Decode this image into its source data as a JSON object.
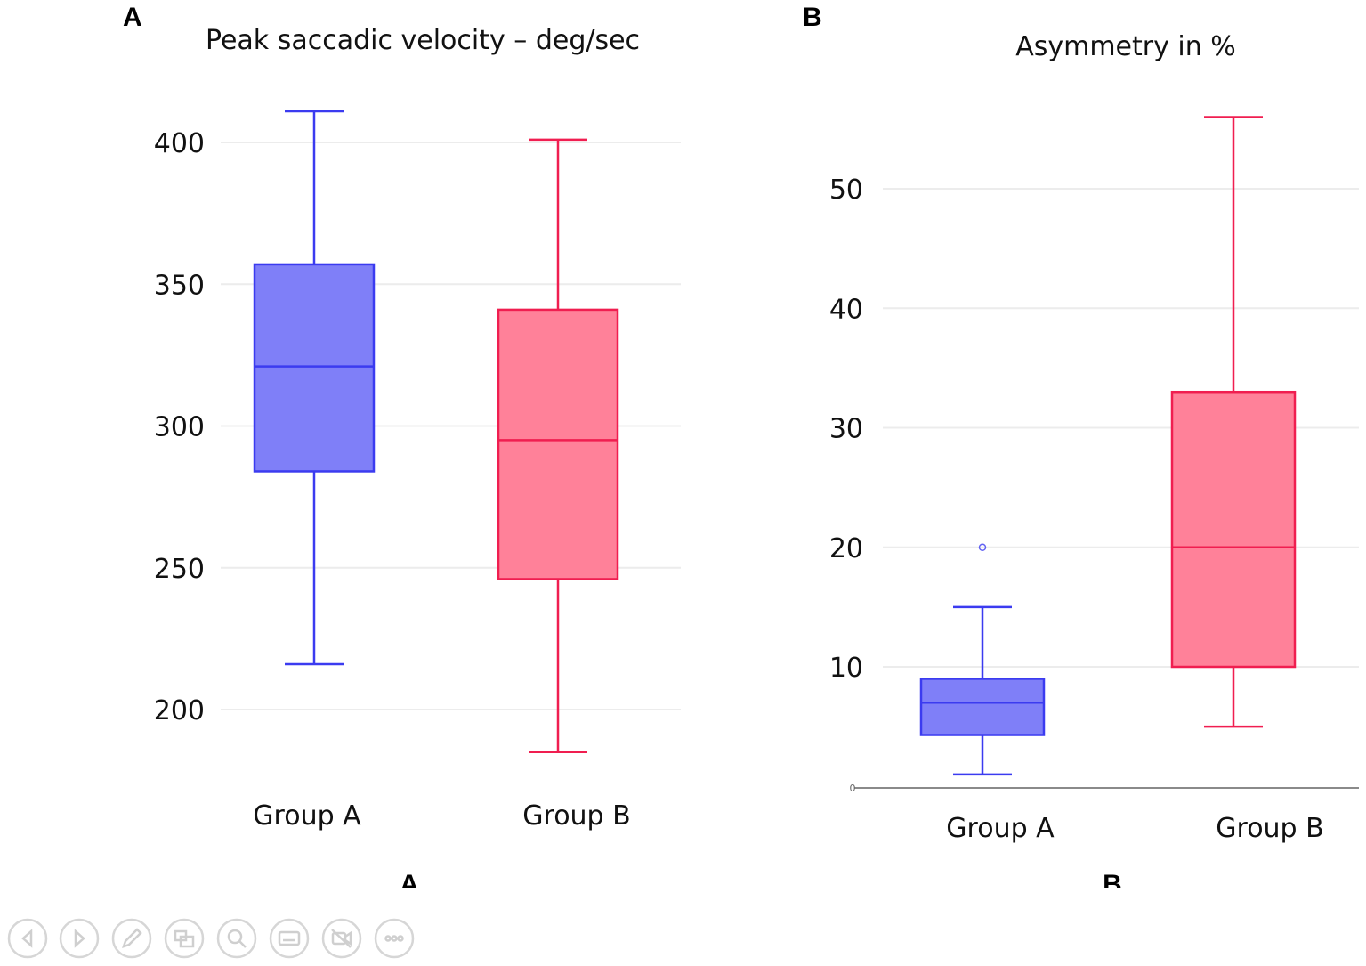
{
  "panels": [
    {
      "letter": "A",
      "footer_letter": "A",
      "chart_data": {
        "type": "box",
        "title": "Peak saccadic velocity – deg/sec",
        "xlabel": "",
        "ylabel": "",
        "ylim": [
          178,
          418
        ],
        "yticks": [
          200,
          250,
          300,
          350,
          400
        ],
        "grid": true,
        "categories": [
          "Group A",
          "Group B"
        ],
        "series": [
          {
            "name": "Group A",
            "color": "#3b3bf0",
            "fill": "#7f7ff8",
            "min": 216,
            "q1": 284,
            "median": 321,
            "q3": 357,
            "max": 411,
            "outliers": []
          },
          {
            "name": "Group B",
            "color": "#f01e50",
            "fill": "#ff8199",
            "min": 185,
            "q1": 246,
            "median": 295,
            "q3": 341,
            "max": 401,
            "outliers": []
          }
        ]
      }
    },
    {
      "letter": "B",
      "footer_letter": "B",
      "chart_data": {
        "type": "box",
        "title": "Asymmetry in %",
        "xlabel": "",
        "ylabel": "",
        "ylim": [
          0,
          58
        ],
        "yticks": [
          10,
          20,
          30,
          40,
          50
        ],
        "zero_label": "0",
        "grid": true,
        "categories": [
          "Group A",
          "Group B"
        ],
        "series": [
          {
            "name": "Group A",
            "color": "#3b3bf0",
            "fill": "#7f7ff8",
            "min": 1,
            "q1": 4.3,
            "median": 7,
            "q3": 9,
            "max": 15,
            "outliers": [
              20
            ]
          },
          {
            "name": "Group B",
            "color": "#f01e50",
            "fill": "#ff8199",
            "min": 5,
            "q1": 10,
            "median": 20,
            "q3": 33,
            "max": 56,
            "outliers": []
          }
        ]
      }
    }
  ],
  "toolbar": {
    "buttons": [
      {
        "name": "previous-icon"
      },
      {
        "name": "next-icon"
      },
      {
        "name": "pen-icon"
      },
      {
        "name": "slides-icon"
      },
      {
        "name": "zoom-icon"
      },
      {
        "name": "subtitles-icon"
      },
      {
        "name": "camera-off-icon"
      },
      {
        "name": "more-icon"
      }
    ]
  }
}
